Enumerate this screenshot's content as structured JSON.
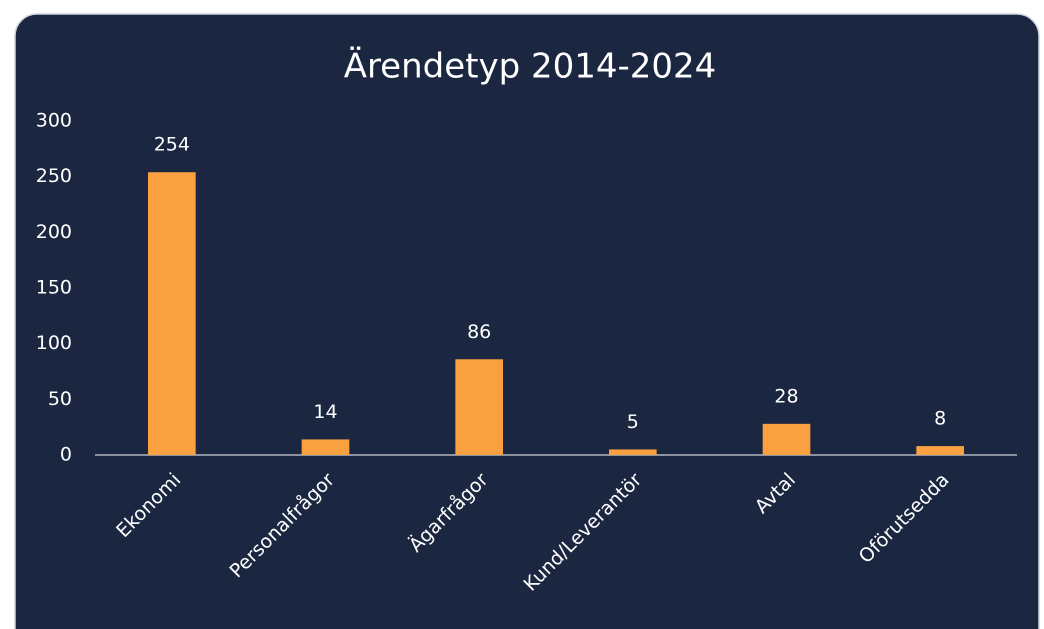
{
  "chart_data": {
    "type": "bar",
    "title": "Ärendetyp 2014-2024",
    "categories": [
      "Ekonomi",
      "Personalfrågor",
      "Ägarfrågor",
      "Kund/Leverantör",
      "Avtal",
      "Oförutsedda"
    ],
    "values": [
      254,
      14,
      86,
      5,
      28,
      8
    ],
    "color": "#f9a040",
    "ylim": [
      0,
      300
    ],
    "yticks": [
      0,
      50,
      100,
      150,
      200,
      250,
      300
    ],
    "grid": false
  }
}
